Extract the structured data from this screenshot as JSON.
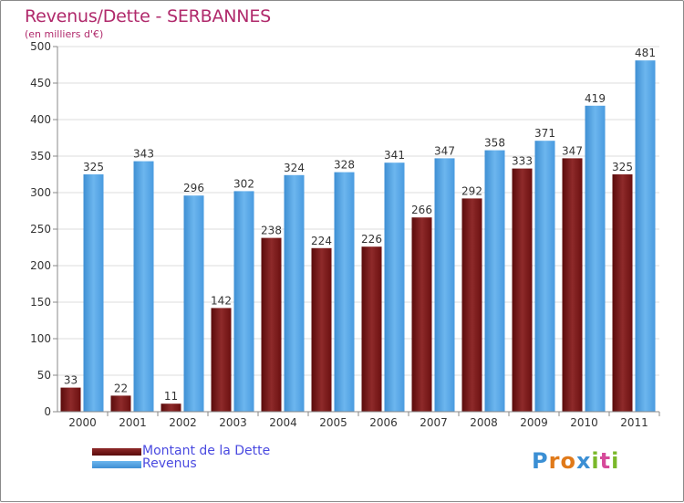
{
  "title": "Revenus/Dette - SERBANNES",
  "subtitle": "(en milliers d'€)",
  "colors": {
    "dette": "#7a1414",
    "dette_light": "#8e2a2a",
    "revenus": "#4d9fe0",
    "revenus_light": "#6cb6ee",
    "title": "#b0296b",
    "legend_text": "#4a4ae0"
  },
  "chart_data": {
    "type": "bar",
    "title": "Revenus/Dette - SERBANNES",
    "subtitle": "(en milliers d'€)",
    "categories": [
      "2000",
      "2001",
      "2002",
      "2003",
      "2004",
      "2005",
      "2006",
      "2007",
      "2008",
      "2009",
      "2010",
      "2011"
    ],
    "series": [
      {
        "name": "Montant de la Dette",
        "values": [
          33,
          22,
          11,
          142,
          238,
          224,
          226,
          266,
          292,
          333,
          347,
          325
        ]
      },
      {
        "name": "Revenus",
        "values": [
          325,
          343,
          296,
          302,
          324,
          328,
          341,
          347,
          358,
          371,
          419,
          481
        ]
      }
    ],
    "ylim": [
      0,
      500
    ],
    "yticks": [
      0,
      50,
      100,
      150,
      200,
      250,
      300,
      350,
      400,
      450,
      500
    ],
    "grid": true,
    "legend_position": "bottom-left"
  },
  "legend": {
    "items": [
      {
        "label": "Montant de la Dette",
        "color": "#6b0f0f"
      },
      {
        "label": "Revenus",
        "color": "#4d9fe0"
      }
    ]
  },
  "logo": {
    "letters": [
      {
        "ch": "P",
        "color": "#3b8fd4"
      },
      {
        "ch": "r",
        "color": "#e07a1a"
      },
      {
        "ch": "o",
        "color": "#e07a1a"
      },
      {
        "ch": "x",
        "color": "#3b8fd4"
      },
      {
        "ch": "i",
        "color": "#7ab82a"
      },
      {
        "ch": "t",
        "color": "#d64a9a"
      },
      {
        "ch": "i",
        "color": "#7ab82a"
      }
    ]
  }
}
